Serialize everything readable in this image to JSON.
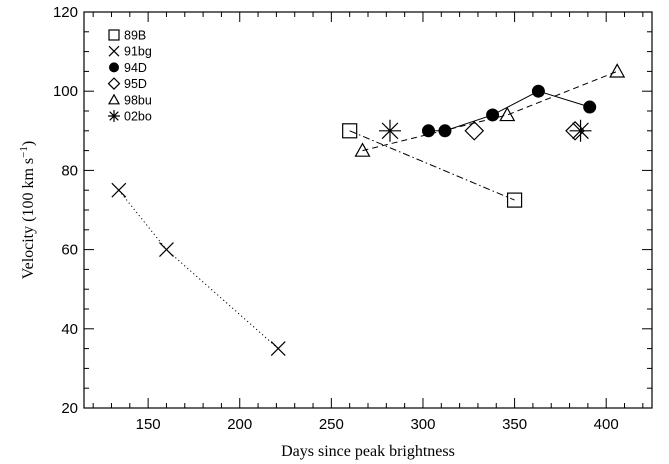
{
  "chart_data": {
    "type": "scatter",
    "title": "",
    "xlabel": "Days since peak brightness",
    "ylabel_main": "Velocity (100 km s",
    "ylabel_sup": "−1",
    "ylabel_close": ")",
    "xlim": [
      115,
      425
    ],
    "ylim": [
      20,
      120
    ],
    "xticks": [
      150,
      200,
      250,
      300,
      350,
      400
    ],
    "yticks": [
      20,
      40,
      60,
      80,
      100,
      120
    ],
    "x_minor_step": 10,
    "y_minor_step": 5,
    "grid": false,
    "legend_position": "top-left",
    "series": [
      {
        "name": "89B",
        "marker": "square",
        "line": "dashdot",
        "points": [
          [
            260,
            90
          ],
          [
            350,
            72.5
          ]
        ]
      },
      {
        "name": "91bg",
        "marker": "x",
        "line": "dotted",
        "points": [
          [
            134,
            75
          ],
          [
            160,
            60
          ],
          [
            221,
            35
          ]
        ]
      },
      {
        "name": "94D",
        "marker": "filled-circle",
        "line": "solid",
        "points": [
          [
            303,
            90
          ],
          [
            312,
            90
          ],
          [
            338,
            94
          ],
          [
            363,
            100
          ],
          [
            391,
            96
          ]
        ]
      },
      {
        "name": "95D",
        "marker": "diamond",
        "line": "none",
        "points": [
          [
            328,
            90
          ],
          [
            383,
            90
          ]
        ]
      },
      {
        "name": "98bu",
        "marker": "triangle",
        "line": "dashed",
        "points": [
          [
            267,
            85
          ],
          [
            346,
            94
          ],
          [
            406,
            105
          ]
        ]
      },
      {
        "name": "02bo",
        "marker": "asterisk",
        "line": "none",
        "points": [
          [
            282,
            90
          ],
          [
            386,
            90
          ]
        ]
      }
    ]
  }
}
